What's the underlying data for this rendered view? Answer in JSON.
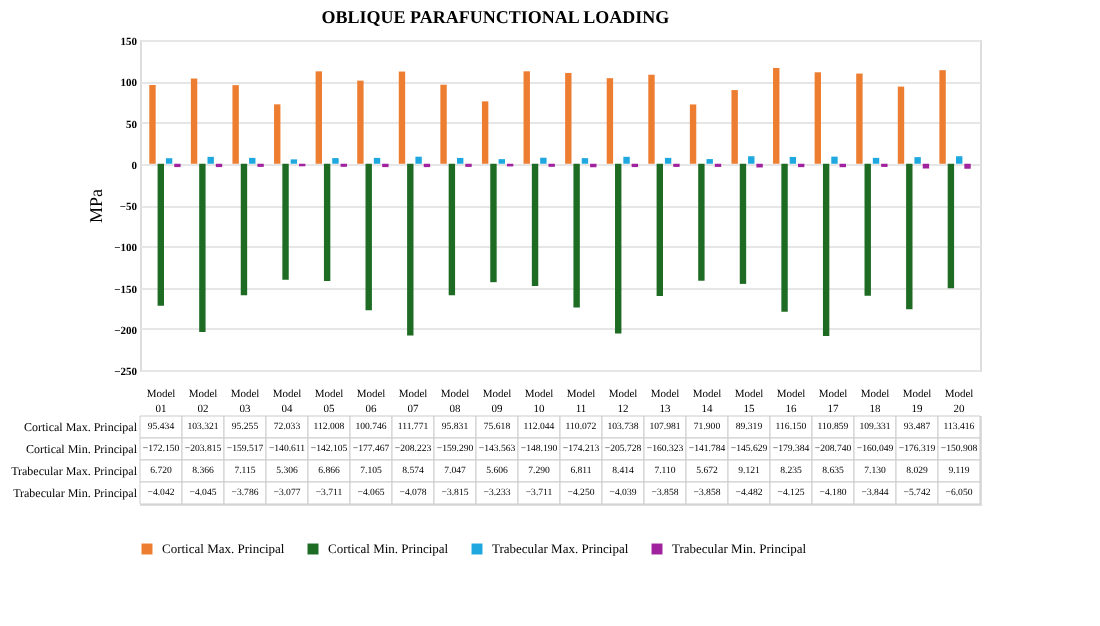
{
  "chart_data": {
    "type": "bar",
    "title": "OBLIQUE PARAFUNCTIONAL LOADING",
    "ylabel": "MPa",
    "categories": [
      "Model 01",
      "Model 02",
      "Model 03",
      "Model 04",
      "Model 05",
      "Model 06",
      "Model 07",
      "Model 08",
      "Model 09",
      "Model 10",
      "Model 11",
      "Model 12",
      "Model 13",
      "Model 14",
      "Model 15",
      "Model 16",
      "Model 17",
      "Model 18",
      "Model 19",
      "Model 20"
    ],
    "series": [
      {
        "name": "Cortical Max. Principal",
        "color": "#ed7d31",
        "values": [
          95.434,
          103.321,
          95.255,
          72.033,
          112.008,
          100.746,
          111.771,
          95.831,
          75.618,
          112.044,
          110.072,
          103.738,
          107.981,
          71.9,
          89.319,
          116.15,
          110.859,
          109.331,
          93.487,
          113.416
        ],
        "value_labels": [
          "95.434",
          "103.321",
          "95.255",
          "72.033",
          "112.008",
          "100.746",
          "111.771",
          "95.831",
          "75.618",
          "112.044",
          "110.072",
          "103.738",
          "107.981",
          "71.900",
          "89.319",
          "116.150",
          "110.859",
          "109.331",
          "93.487",
          "113.416"
        ]
      },
      {
        "name": "Cortical Min. Principal",
        "color": "#1e6b23",
        "values": [
          -172.15,
          -203.815,
          -159.517,
          -140.611,
          -142.105,
          -177.467,
          -208.223,
          -159.29,
          -143.563,
          -148.19,
          -174.213,
          -205.728,
          -160.323,
          -141.784,
          -145.629,
          -179.384,
          -208.74,
          -160.049,
          -176.319,
          -150.908
        ],
        "value_labels": [
          "−172.150",
          "−203.815",
          "−159.517",
          "−140.611",
          "−142.105",
          "−177.467",
          "−208.223",
          "−159.290",
          "−143.563",
          "−148.190",
          "−174.213",
          "−205.728",
          "−160.323",
          "−141.784",
          "−145.629",
          "−179.384",
          "−208.740",
          "−160.049",
          "−176.319",
          "−150.908"
        ]
      },
      {
        "name": "Trabecular Max. Principal",
        "color": "#1fa8e0",
        "values": [
          6.72,
          8.366,
          7.115,
          5.306,
          6.866,
          7.105,
          8.574,
          7.047,
          5.606,
          7.29,
          6.811,
          8.414,
          7.11,
          5.672,
          9.121,
          8.235,
          8.635,
          7.13,
          8.029,
          9.119
        ],
        "value_labels": [
          "6.720",
          "8.366",
          "7.115",
          "5.306",
          "6.866",
          "7.105",
          "8.574",
          "7.047",
          "5.606",
          "7.290",
          "6.811",
          "8.414",
          "7.110",
          "5.672",
          "9.121",
          "8.235",
          "8.635",
          "7.130",
          "8.029",
          "9.119"
        ]
      },
      {
        "name": "Trabecular Min. Principal",
        "color": "#a0229e",
        "values": [
          -4.042,
          -4.045,
          -3.786,
          -3.077,
          -3.711,
          -4.065,
          -4.078,
          -3.815,
          -3.233,
          -3.711,
          -4.25,
          -4.039,
          -3.858,
          -3.858,
          -4.482,
          -4.125,
          -4.18,
          -3.844,
          -5.742,
          -6.05
        ],
        "value_labels": [
          "−4.042",
          "−4.045",
          "−3.786",
          "−3.077",
          "−3.711",
          "−4.065",
          "−4.078",
          "−3.815",
          "−3.233",
          "−3.711",
          "−4.250",
          "−4.039",
          "−3.858",
          "−3.858",
          "−4.482",
          "−4.125",
          "−4.180",
          "−3.844",
          "−5.742",
          "−6.050"
        ]
      }
    ],
    "ylim": [
      -250,
      150
    ],
    "yticks": [
      -250,
      -200,
      -150,
      -100,
      -50,
      0,
      50,
      100,
      150
    ],
    "grid": "y",
    "legend": "bottom",
    "data_labels": true
  }
}
